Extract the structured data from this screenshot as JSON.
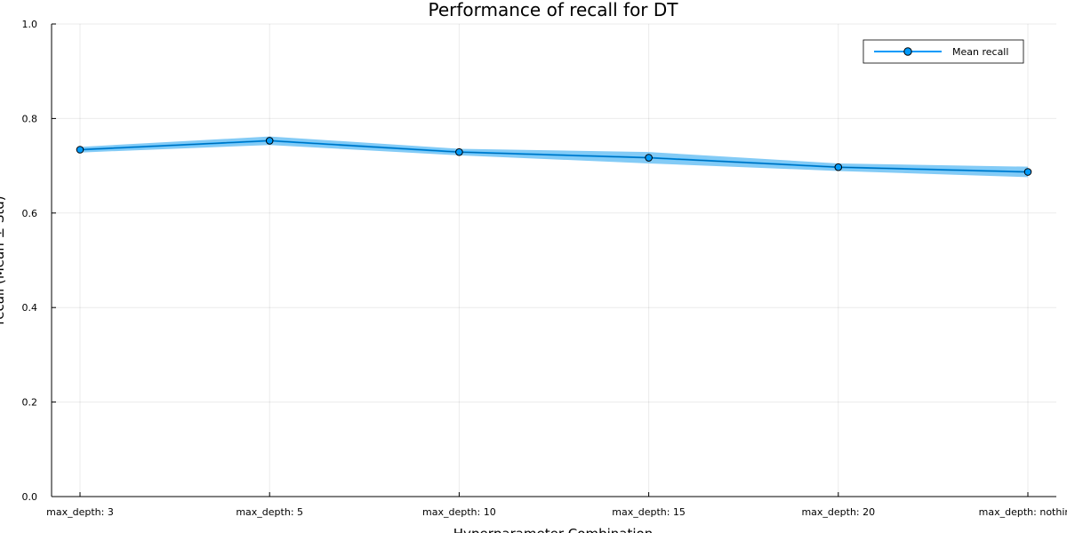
{
  "chart_data": {
    "type": "line",
    "title": "Performance of recall for DT",
    "xlabel": "Hyperparameter Combination",
    "ylabel": "recall (Mean ± Std)",
    "categories": [
      "max_depth: 3",
      "max_depth: 5",
      "max_depth: 10",
      "max_depth: 15",
      "max_depth: 20",
      "max_depth: nothing"
    ],
    "series": [
      {
        "name": "Mean recall",
        "values": [
          0.734,
          0.753,
          0.729,
          0.717,
          0.697,
          0.687
        ],
        "std": [
          0.006,
          0.009,
          0.007,
          0.012,
          0.008,
          0.011
        ],
        "color": "#009AFA",
        "band_color": "#7CC8F5"
      }
    ],
    "ylim": [
      0,
      1
    ],
    "yticks": [
      "0.0",
      "0.2",
      "0.4",
      "0.6",
      "0.8",
      "1.0"
    ],
    "ytick_values": [
      0,
      0.2,
      0.4,
      0.6,
      0.8,
      1.0
    ],
    "grid": true,
    "legend_position": "top-right"
  }
}
